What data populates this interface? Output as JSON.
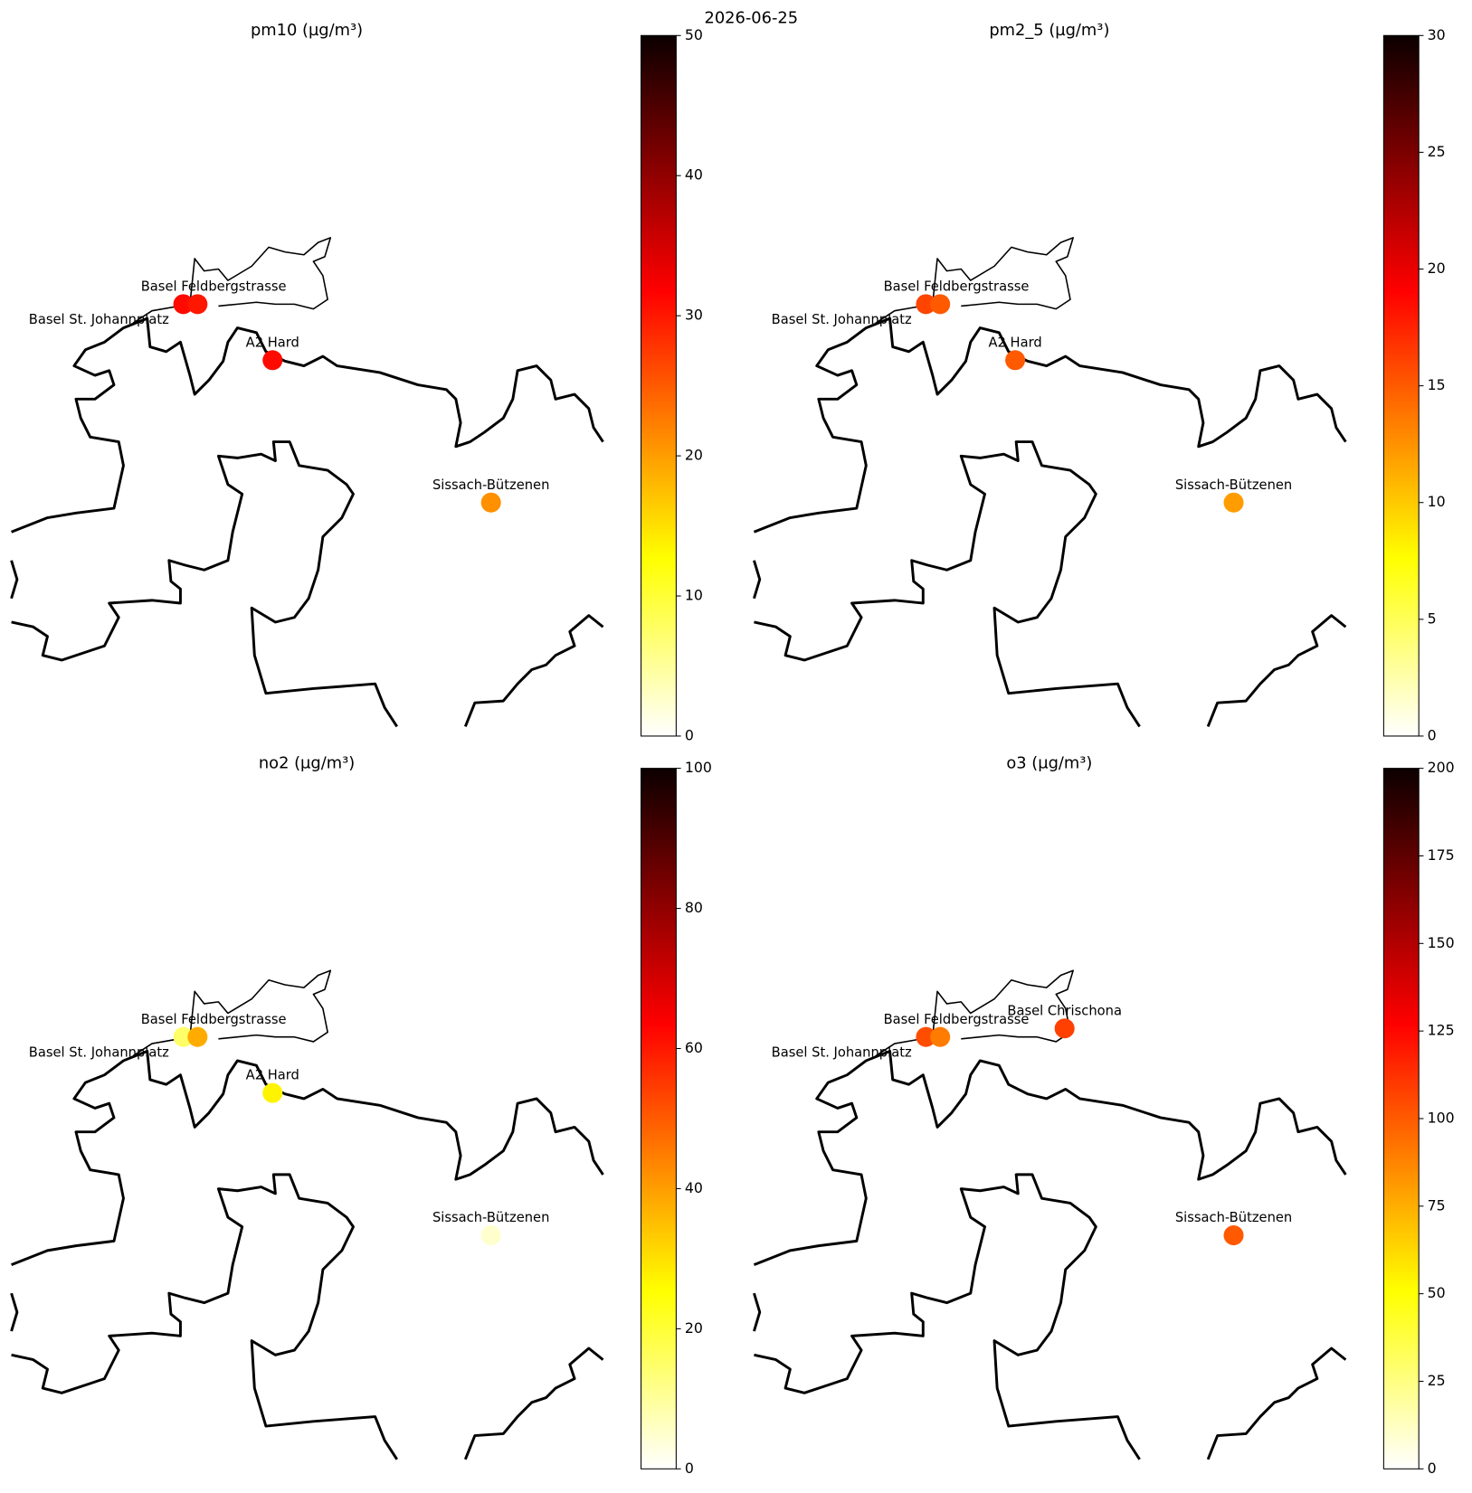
{
  "title": "2026-06-25",
  "chart_data": [
    {
      "type": "scatter",
      "title": "pm10 (µg/m³)",
      "colormap": "hot_r",
      "categories": [
        "Basel St. Johannplatz",
        "Basel Feldbergstrasse",
        "A2 Hard",
        "Sissach-Bützenen"
      ],
      "values": [
        31,
        30,
        31,
        21
      ],
      "clim": [
        0,
        50
      ],
      "cticks": [
        0,
        10,
        20,
        30,
        40,
        50
      ]
    },
    {
      "type": "scatter",
      "title": "pm2_5 (µg/m³)",
      "colormap": "hot_r",
      "categories": [
        "Basel St. Johannplatz",
        "Basel Feldbergstrasse",
        "A2 Hard",
        "Sissach-Bützenen"
      ],
      "values": [
        16,
        15,
        15,
        12
      ],
      "clim": [
        0,
        30
      ],
      "cticks": [
        0,
        5,
        10,
        15,
        20,
        25,
        30
      ]
    },
    {
      "type": "scatter",
      "title": "no2 (µg/m³)",
      "colormap": "hot_r",
      "categories": [
        "Basel St. Johannplatz",
        "Basel Feldbergstrasse",
        "A2 Hard",
        "Sissach-Bützenen"
      ],
      "values": [
        15,
        38,
        27,
        5
      ],
      "clim": [
        0,
        100
      ],
      "cticks": [
        0,
        20,
        40,
        60,
        80,
        100
      ]
    },
    {
      "type": "scatter",
      "title": "o3 (µg/m³)",
      "colormap": "hot_r",
      "categories": [
        "Basel St. Johannplatz",
        "Basel Feldbergstrasse",
        "Basel Chrischona",
        "Sissach-Bützenen"
      ],
      "values": [
        104,
        90,
        108,
        100
      ],
      "clim": [
        0,
        200
      ],
      "cticks": [
        0,
        25,
        50,
        75,
        100,
        125,
        150,
        175,
        200
      ]
    }
  ]
}
